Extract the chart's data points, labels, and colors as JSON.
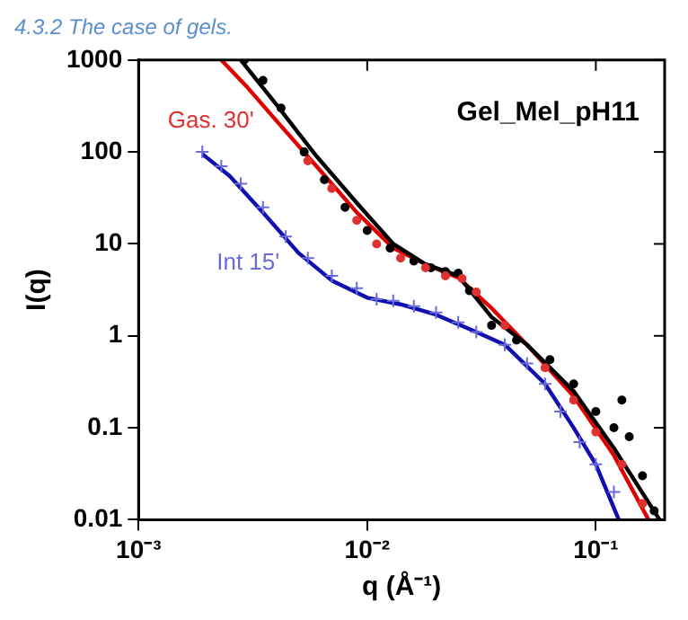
{
  "chart_data": {
    "type": "scatter",
    "title": "Gel_Mel_pH11",
    "xlabel": "q (Å⁻¹)",
    "ylabel": "I(q)",
    "annotations": [
      "4.3.2 The case of gels."
    ],
    "log": "xy",
    "grid": false,
    "legend": false,
    "xlim": [
      0.001,
      0.2
    ],
    "ylim": [
      0.01,
      1000
    ],
    "xticks": [
      {
        "value": 0.001,
        "label": "10⁻³"
      },
      {
        "value": 0.01,
        "label": "10⁻²"
      },
      {
        "value": 0.1,
        "label": "10⁻¹"
      }
    ],
    "yticks": [
      0.01,
      0.1,
      1,
      10,
      100,
      1000
    ],
    "series": [
      {
        "marker": "circle",
        "color": "#000000",
        "x": [
          0.0029,
          0.0035,
          0.0042,
          0.0053,
          0.0065,
          0.008,
          0.01,
          0.0126,
          0.016,
          0.019,
          0.022,
          0.025,
          0.028,
          0.035,
          0.045,
          0.063,
          0.08,
          0.1,
          0.12,
          0.13,
          0.14,
          0.16,
          0.18
        ],
        "values": [
          1000,
          600,
          300,
          100,
          50,
          25,
          14,
          9,
          6.5,
          5.5,
          5,
          4.8,
          3.1,
          1.3,
          0.9,
          0.55,
          0.3,
          0.15,
          0.1,
          0.2,
          0.08,
          0.03,
          0.0125
        ]
      },
      {
        "type": "line",
        "marker": "none",
        "color": "#000000",
        "x": [
          0.0028,
          0.004,
          0.006,
          0.009,
          0.013,
          0.018,
          0.025,
          0.035,
          0.05,
          0.08,
          0.12,
          0.19
        ],
        "values": [
          1000,
          330,
          90,
          28,
          10,
          6,
          4.5,
          1.6,
          0.8,
          0.25,
          0.06,
          0.01
        ]
      },
      {
        "name": "Gas. 30'",
        "marker": "circle",
        "color": "#e03030",
        "x": [
          0.0055,
          0.007,
          0.009,
          0.011,
          0.014,
          0.018,
          0.022,
          0.026,
          0.03,
          0.04,
          0.06,
          0.08,
          0.1,
          0.13,
          0.16
        ],
        "values": [
          80,
          40,
          18,
          10,
          7,
          5.5,
          4.5,
          4.2,
          3,
          1.3,
          0.45,
          0.2,
          0.09,
          0.04,
          0.015
        ]
      },
      {
        "type": "line",
        "marker": "none",
        "color": "#e00000",
        "x": [
          0.0023,
          0.003,
          0.004,
          0.006,
          0.009,
          0.013,
          0.018,
          0.025,
          0.035,
          0.05,
          0.08,
          0.12,
          0.17
        ],
        "values": [
          1000,
          500,
          220,
          70,
          22,
          9,
          6,
          4.3,
          2,
          0.8,
          0.22,
          0.05,
          0.01
        ]
      },
      {
        "name": "Int 15'",
        "marker": "cross",
        "color": "#6a6ad8",
        "x": [
          0.0019,
          0.0023,
          0.0028,
          0.0035,
          0.0044,
          0.0055,
          0.007,
          0.009,
          0.011,
          0.013,
          0.016,
          0.02,
          0.025,
          0.03,
          0.04,
          0.05,
          0.06,
          0.07,
          0.085,
          0.1,
          0.12
        ],
        "values": [
          100,
          70,
          45,
          25,
          12,
          7,
          4.5,
          3.3,
          2.5,
          2.4,
          2.1,
          1.8,
          1.4,
          1.1,
          0.8,
          0.5,
          0.3,
          0.15,
          0.07,
          0.04,
          0.02
        ]
      },
      {
        "type": "line",
        "marker": "none",
        "color": "#1010b0",
        "x": [
          0.0019,
          0.0025,
          0.0035,
          0.005,
          0.007,
          0.01,
          0.014,
          0.02,
          0.03,
          0.04,
          0.06,
          0.08,
          0.1,
          0.126
        ],
        "values": [
          95,
          55,
          22,
          8,
          4,
          2.6,
          2.2,
          1.7,
          1.1,
          0.8,
          0.3,
          0.1,
          0.04,
          0.01
        ]
      }
    ]
  }
}
